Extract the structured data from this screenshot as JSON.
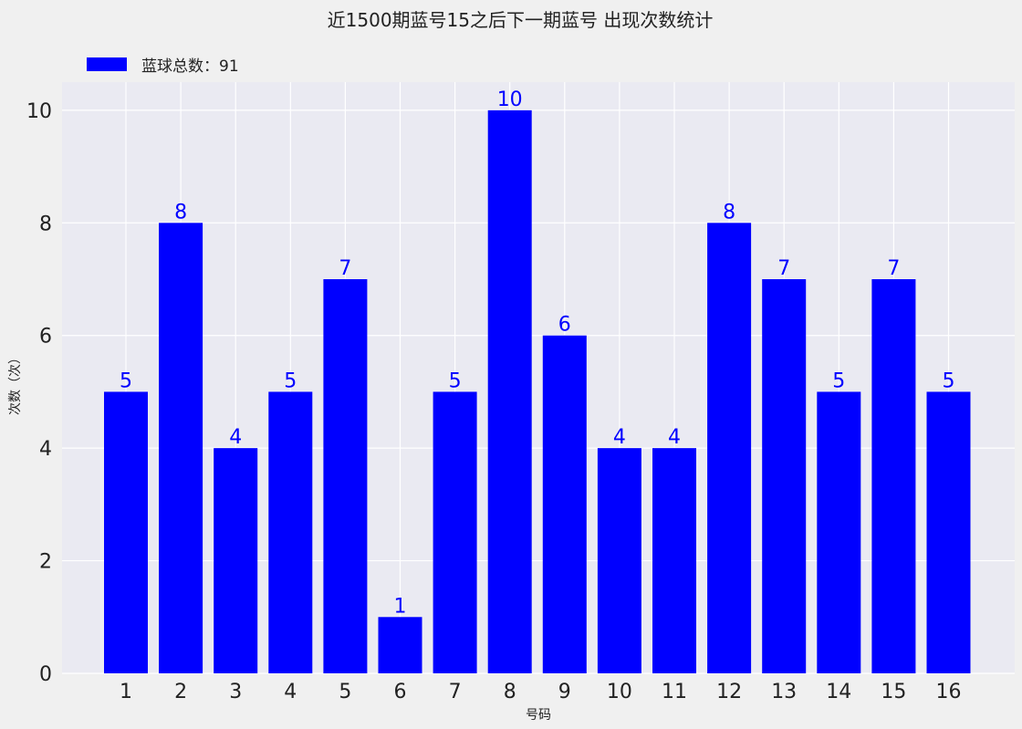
{
  "chart_data": {
    "type": "bar",
    "title": "近1500期蓝号15之后下一期蓝号 出现次数统计",
    "xlabel": "号码",
    "ylabel": "次数（次）",
    "categories": [
      "1",
      "2",
      "3",
      "4",
      "5",
      "6",
      "7",
      "8",
      "9",
      "10",
      "11",
      "12",
      "13",
      "14",
      "15",
      "16"
    ],
    "series": [
      {
        "name": "蓝球总数：91",
        "values": [
          5,
          8,
          4,
          5,
          7,
          1,
          5,
          10,
          6,
          4,
          4,
          8,
          7,
          5,
          7,
          5
        ],
        "color": "#0000ff"
      }
    ],
    "ylim": [
      0,
      10.5
    ],
    "yticks": [
      0,
      2,
      4,
      6,
      8,
      10
    ],
    "grid": true,
    "legend_position": "top-left",
    "plot_background": "#eaeaf2",
    "page_background": "#f0f0f0",
    "data_label_color": "#0000ff"
  }
}
